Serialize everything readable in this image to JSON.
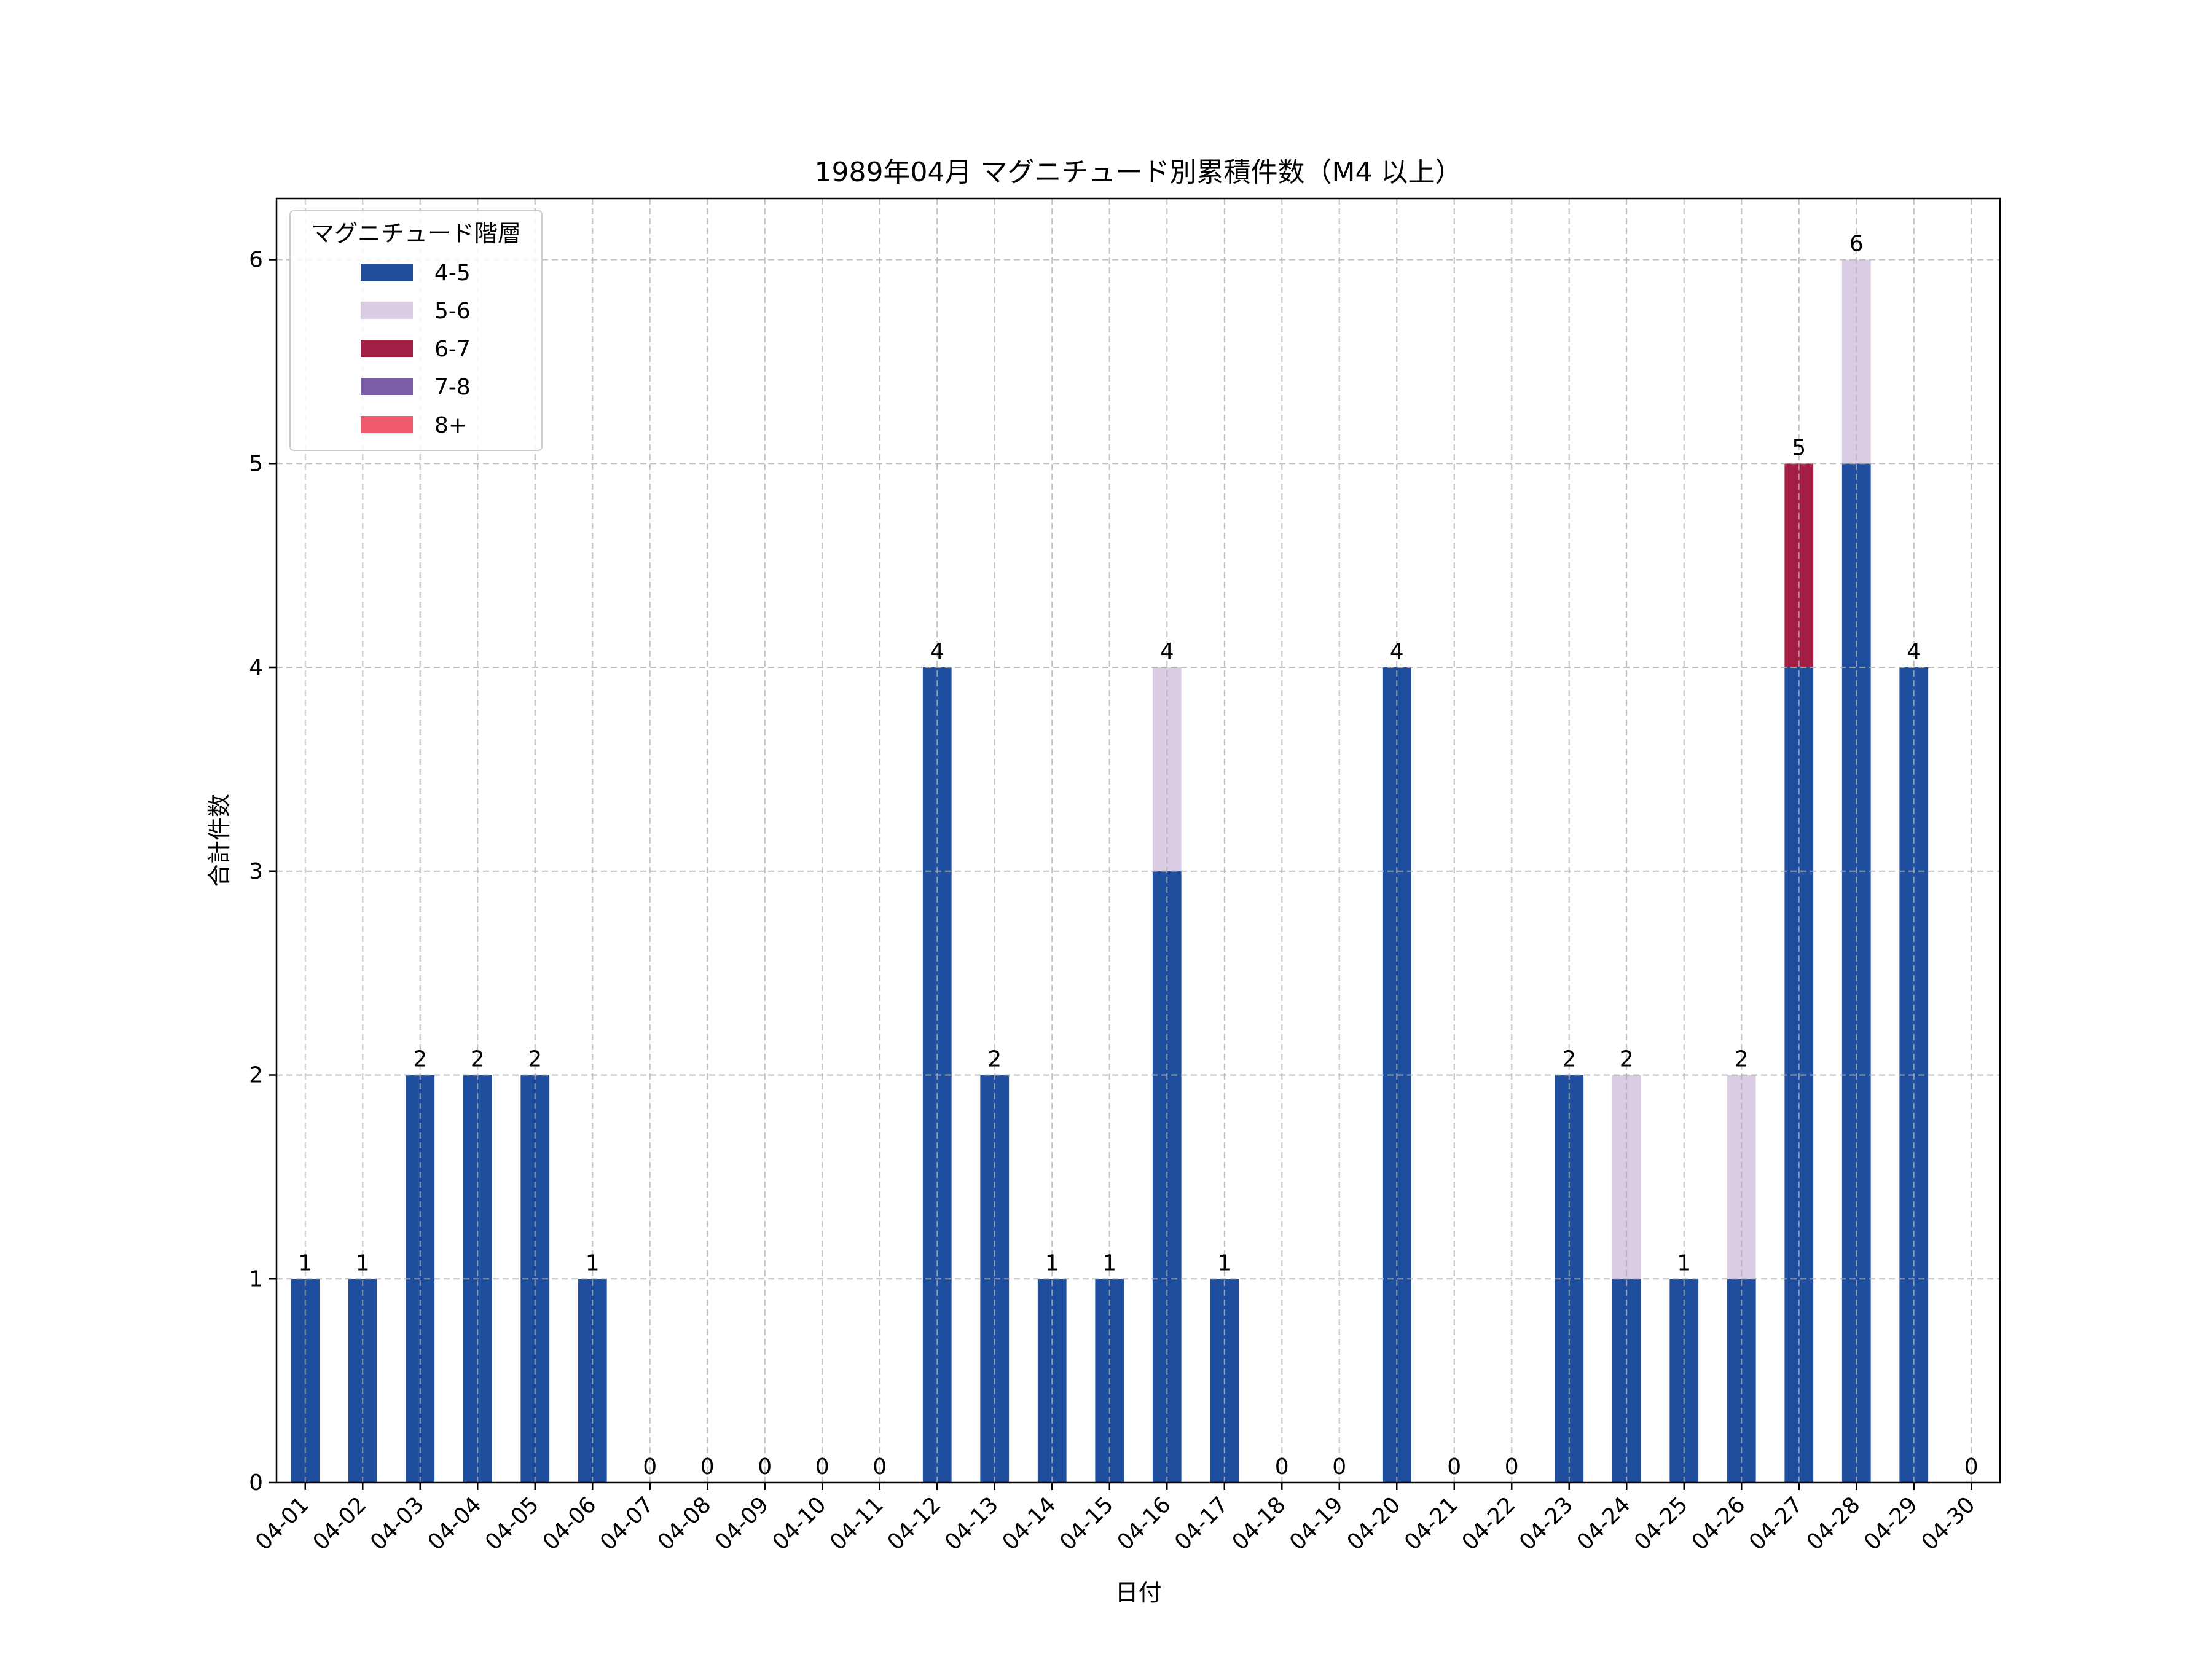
{
  "chart_data": {
    "type": "bar",
    "stacked": true,
    "title": "1989年04月 マグニチュード別累積件数（M4 以上）",
    "xlabel": "日付",
    "ylabel": "合計件数",
    "ylim": [
      0,
      6.3
    ],
    "yticks": [
      0,
      1,
      2,
      3,
      4,
      5,
      6
    ],
    "grid": true,
    "legend_title": "マグニチュード階層",
    "legend_position": "top-left",
    "categories": [
      "04-01",
      "04-02",
      "04-03",
      "04-04",
      "04-05",
      "04-06",
      "04-07",
      "04-08",
      "04-09",
      "04-10",
      "04-11",
      "04-12",
      "04-13",
      "04-14",
      "04-15",
      "04-16",
      "04-17",
      "04-18",
      "04-19",
      "04-20",
      "04-21",
      "04-22",
      "04-23",
      "04-24",
      "04-25",
      "04-26",
      "04-27",
      "04-28",
      "04-29",
      "04-30"
    ],
    "series": [
      {
        "name": "4-5",
        "color": "#1f4e9f",
        "values": [
          1,
          1,
          2,
          2,
          2,
          1,
          0,
          0,
          0,
          0,
          0,
          4,
          2,
          1,
          1,
          3,
          1,
          0,
          0,
          4,
          0,
          0,
          2,
          1,
          1,
          1,
          4,
          5,
          4,
          0
        ]
      },
      {
        "name": "5-6",
        "color": "#d9cce3",
        "values": [
          0,
          0,
          0,
          0,
          0,
          0,
          0,
          0,
          0,
          0,
          0,
          0,
          0,
          0,
          0,
          1,
          0,
          0,
          0,
          0,
          0,
          0,
          0,
          1,
          0,
          1,
          0,
          1,
          0,
          0
        ]
      },
      {
        "name": "6-7",
        "color": "#a31f45",
        "values": [
          0,
          0,
          0,
          0,
          0,
          0,
          0,
          0,
          0,
          0,
          0,
          0,
          0,
          0,
          0,
          0,
          0,
          0,
          0,
          0,
          0,
          0,
          0,
          0,
          0,
          0,
          1,
          0,
          0,
          0
        ]
      },
      {
        "name": "7-8",
        "color": "#7a5fa8",
        "values": [
          0,
          0,
          0,
          0,
          0,
          0,
          0,
          0,
          0,
          0,
          0,
          0,
          0,
          0,
          0,
          0,
          0,
          0,
          0,
          0,
          0,
          0,
          0,
          0,
          0,
          0,
          0,
          0,
          0,
          0
        ]
      },
      {
        "name": "8+",
        "color": "#ee5a6b",
        "values": [
          0,
          0,
          0,
          0,
          0,
          0,
          0,
          0,
          0,
          0,
          0,
          0,
          0,
          0,
          0,
          0,
          0,
          0,
          0,
          0,
          0,
          0,
          0,
          0,
          0,
          0,
          0,
          0,
          0,
          0
        ]
      }
    ],
    "totals": [
      1,
      1,
      2,
      2,
      2,
      1,
      0,
      0,
      0,
      0,
      0,
      4,
      2,
      1,
      1,
      4,
      1,
      0,
      0,
      4,
      0,
      0,
      2,
      2,
      1,
      2,
      5,
      6,
      4,
      0
    ]
  }
}
